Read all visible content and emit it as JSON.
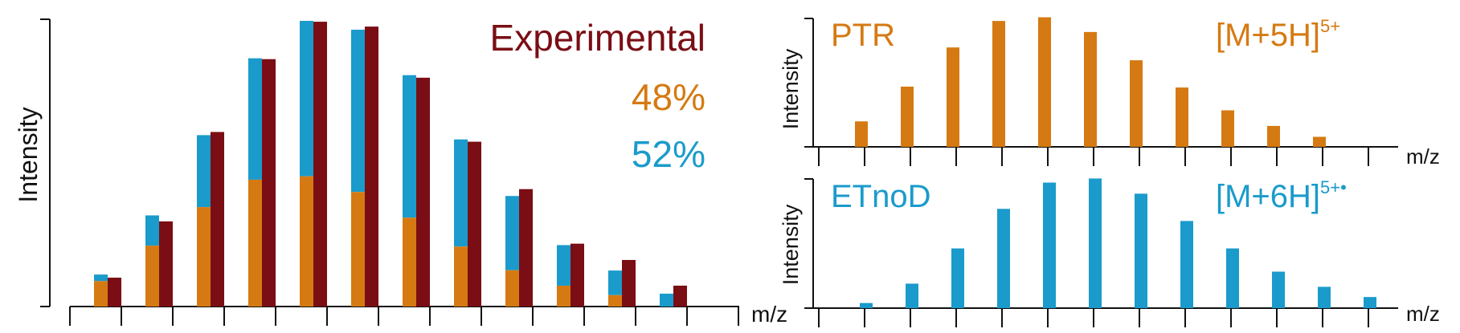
{
  "colors": {
    "ptr": "#D57A12",
    "etnod": "#1A9BCB",
    "experimental": "#7A0E14",
    "axis": "#111111"
  },
  "chart_data": [
    {
      "type": "bar",
      "panel": "left",
      "ylabel": "Intensity",
      "xlabel": "m/z",
      "ylim": [
        0,
        100
      ],
      "grid": false,
      "legend": [
        {
          "text": "Experimental",
          "color": "#7A0E14"
        },
        {
          "text": "48%",
          "color": "#D57A12"
        },
        {
          "text": "52%",
          "color": "#1A9BCB"
        }
      ],
      "legend_position": "top-right",
      "peaks": 12,
      "series": [
        {
          "name": "48%",
          "stacked_base": true,
          "values": [
            8.9,
            21.3,
            34.8,
            44.4,
            45.6,
            40.1,
            31.1,
            21.0,
            12.7,
            7.3,
            4.0,
            0
          ]
        },
        {
          "name": "52%",
          "stacked_on": "48%",
          "values": [
            2.3,
            10.6,
            25.2,
            42.5,
            54.4,
            56.8,
            49.9,
            37.5,
            26.0,
            14.2,
            8.6,
            4.5
          ]
        },
        {
          "name": "Experimental",
          "values": [
            10.1,
            29.8,
            61.1,
            86.6,
            99.7,
            98.0,
            80.1,
            57.7,
            41.1,
            22.0,
            16.3,
            7.3
          ]
        }
      ]
    },
    {
      "type": "bar",
      "panel": "top-right",
      "title": "PTR",
      "annotation": {
        "base": "[M+5H]",
        "sup": "5+"
      },
      "ylabel": "Intensity",
      "xlabel": "m/z",
      "ylim": [
        0,
        100
      ],
      "grid": false,
      "series": [
        {
          "name": "PTR",
          "values": [
            20.1,
            47.5,
            78.4,
            99.3,
            102.2,
            90.6,
            68.3,
            46.8,
            28.8,
            16.5,
            7.9
          ]
        }
      ]
    },
    {
      "type": "bar",
      "panel": "bottom-right",
      "title": "ETnoD",
      "annotation": {
        "base": "[M+6H]",
        "sup": "5+•"
      },
      "ylabel": "Intensity",
      "xlabel": "m/z",
      "ylim": [
        0,
        100
      ],
      "grid": false,
      "series": [
        {
          "name": "ETnoD",
          "values": [
            4.0,
            19.2,
            46.8,
            77.8,
            98.4,
            101.6,
            89.7,
            68.3,
            46.8,
            28.6,
            16.7,
            8.7
          ]
        }
      ]
    }
  ]
}
